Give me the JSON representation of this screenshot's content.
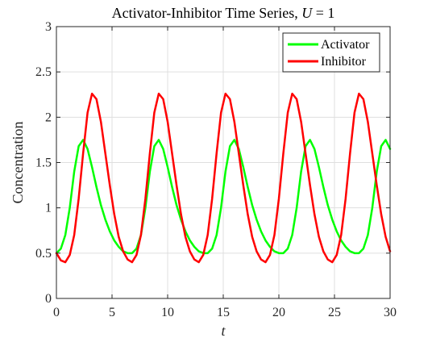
{
  "chart_data": {
    "type": "line",
    "title": "Activator-Inhibitor Time Series, ",
    "title_math": "U",
    "title_suffix": " = 1",
    "xlabel": "t",
    "ylabel": "Concentration",
    "xlim": [
      0,
      30
    ],
    "ylim": [
      0,
      3
    ],
    "xticks": [
      0,
      5,
      10,
      15,
      20,
      25,
      30
    ],
    "xtick_labels": [
      "0",
      "5",
      "10",
      "15",
      "20",
      "25",
      "30"
    ],
    "yticks": [
      0,
      0.5,
      1,
      1.5,
      2,
      2.5,
      3
    ],
    "ytick_labels": [
      "0",
      "0.5",
      "1",
      "1.5",
      "2",
      "2.5",
      "3"
    ],
    "grid": true,
    "legend_position": "top-right",
    "series": [
      {
        "name": "Activator",
        "color": "#00ff00",
        "x": [
          0,
          0.4,
          0.8,
          1.2,
          1.6,
          2.0,
          2.4,
          2.8,
          3.2,
          3.6,
          4.0,
          4.4,
          4.8,
          5.2,
          5.6,
          6.0,
          6.4,
          6.8,
          7.2,
          7.6,
          8.0,
          8.4,
          8.8,
          9.2,
          9.6,
          10.0,
          10.4,
          10.8,
          11.2,
          11.6,
          12.0,
          12.4,
          12.8,
          13.2,
          13.6,
          14.0,
          14.4,
          14.8,
          15.2,
          15.6,
          16.0,
          16.4,
          16.8,
          17.2,
          17.6,
          18.0,
          18.4,
          18.8,
          19.2,
          19.6,
          20.0,
          20.4,
          20.8,
          21.2,
          21.6,
          22.0,
          22.4,
          22.8,
          23.2,
          23.6,
          24.0,
          24.4,
          24.8,
          25.2,
          25.6,
          26.0,
          26.4,
          26.8,
          27.2,
          27.6,
          28.0,
          28.4,
          28.8,
          29.2,
          29.6,
          30.0
        ],
        "y": [
          0.5,
          0.55,
          0.7,
          1.0,
          1.4,
          1.68,
          1.75,
          1.65,
          1.45,
          1.23,
          1.03,
          0.87,
          0.74,
          0.64,
          0.57,
          0.52,
          0.5,
          0.5,
          0.55,
          0.7,
          1.0,
          1.4,
          1.68,
          1.75,
          1.65,
          1.45,
          1.23,
          1.03,
          0.87,
          0.74,
          0.64,
          0.57,
          0.52,
          0.5,
          0.5,
          0.55,
          0.7,
          1.0,
          1.4,
          1.68,
          1.75,
          1.65,
          1.45,
          1.23,
          1.03,
          0.87,
          0.74,
          0.64,
          0.57,
          0.52,
          0.5,
          0.5,
          0.55,
          0.7,
          1.0,
          1.4,
          1.68,
          1.75,
          1.65,
          1.45,
          1.23,
          1.03,
          0.87,
          0.74,
          0.64,
          0.57,
          0.52,
          0.5,
          0.5,
          0.55,
          0.7,
          1.0,
          1.4,
          1.68,
          1.75,
          1.65
        ]
      },
      {
        "name": "Inhibitor",
        "color": "#ff0000",
        "x": [
          0,
          0.4,
          0.8,
          1.2,
          1.6,
          2.0,
          2.4,
          2.8,
          3.2,
          3.6,
          4.0,
          4.4,
          4.8,
          5.2,
          5.6,
          6.0,
          6.4,
          6.8,
          7.2,
          7.6,
          8.0,
          8.4,
          8.8,
          9.2,
          9.6,
          10.0,
          10.4,
          10.8,
          11.2,
          11.6,
          12.0,
          12.4,
          12.8,
          13.2,
          13.6,
          14.0,
          14.4,
          14.8,
          15.2,
          15.6,
          16.0,
          16.4,
          16.8,
          17.2,
          17.6,
          18.0,
          18.4,
          18.8,
          19.2,
          19.6,
          20.0,
          20.4,
          20.8,
          21.2,
          21.6,
          22.0,
          22.4,
          22.8,
          23.2,
          23.6,
          24.0,
          24.4,
          24.8,
          25.2,
          25.6,
          26.0,
          26.4,
          26.8,
          27.2,
          27.6,
          28.0,
          28.4,
          28.8,
          29.2,
          29.6,
          30.0
        ],
        "y": [
          0.5,
          0.42,
          0.4,
          0.48,
          0.7,
          1.1,
          1.6,
          2.05,
          2.26,
          2.2,
          1.95,
          1.6,
          1.25,
          0.93,
          0.68,
          0.52,
          0.43,
          0.4,
          0.48,
          0.7,
          1.1,
          1.6,
          2.05,
          2.26,
          2.2,
          1.95,
          1.6,
          1.25,
          0.93,
          0.68,
          0.52,
          0.43,
          0.4,
          0.48,
          0.7,
          1.1,
          1.6,
          2.05,
          2.26,
          2.2,
          1.95,
          1.6,
          1.25,
          0.93,
          0.68,
          0.52,
          0.43,
          0.4,
          0.48,
          0.7,
          1.1,
          1.6,
          2.05,
          2.26,
          2.2,
          1.95,
          1.6,
          1.25,
          0.93,
          0.68,
          0.52,
          0.43,
          0.4,
          0.48,
          0.7,
          1.1,
          1.6,
          2.05,
          2.26,
          2.2,
          1.95,
          1.6,
          1.25,
          0.93,
          0.68,
          0.52
        ]
      }
    ]
  }
}
